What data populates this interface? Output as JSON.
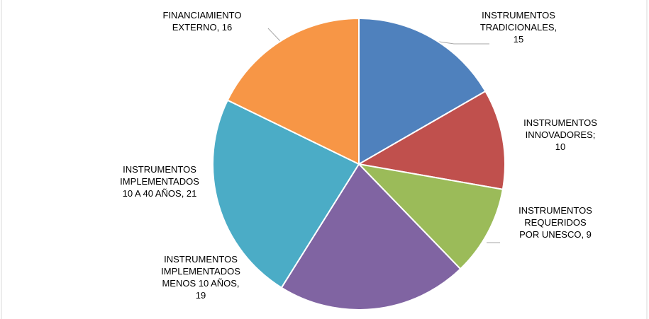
{
  "chart_data": {
    "type": "pie",
    "values": [
      15,
      10,
      9,
      19,
      21,
      16
    ],
    "value_labels": [
      [
        "INSTRUMENTOS",
        "TRADICIONALES,",
        "15"
      ],
      [
        "INSTRUMENTOS",
        "INNOVADORES;",
        "10"
      ],
      [
        "INSTRUMENTOS",
        "REQUERIDOS",
        "POR UNESCO, 9"
      ],
      [
        "INSTRUMENTOS",
        "IMPLEMENTADOS",
        "MENOS 10 AÑOS,",
        "19"
      ],
      [
        "INSTRUMENTOS",
        "IMPLEMENTADOS",
        "10 A 40 AÑOS, 21"
      ],
      [
        "FINANCIAMIENTO",
        "EXTERNO, 16"
      ]
    ],
    "colors": [
      "#4f81bd",
      "#c0504d",
      "#9bbb59",
      "#8064a2",
      "#4bacc6",
      "#f79646"
    ]
  }
}
